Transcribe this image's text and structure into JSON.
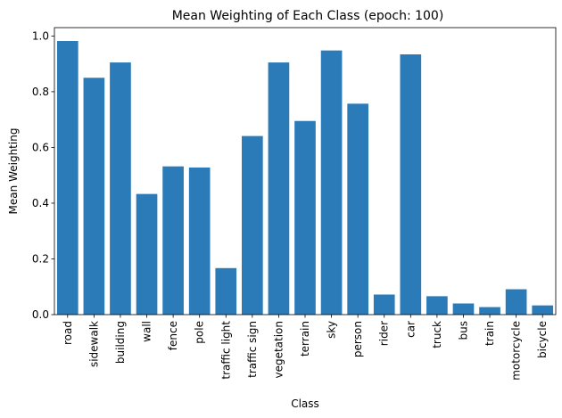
{
  "chart_data": {
    "type": "bar",
    "title": "Mean Weighting of Each Class (epoch: 100)",
    "xlabel": "Class",
    "ylabel": "Mean Weighting",
    "ylim": [
      0,
      1.03
    ],
    "yticks": [
      0.0,
      0.2,
      0.4,
      0.6,
      0.8,
      1.0
    ],
    "ytick_labels": [
      "0.0",
      "0.2",
      "0.4",
      "0.6",
      "0.8",
      "1.0"
    ],
    "categories": [
      "road",
      "sidewalk",
      "building",
      "wall",
      "fence",
      "pole",
      "traffic light",
      "traffic sign",
      "vegetation",
      "terrain",
      "sky",
      "person",
      "rider",
      "car",
      "truck",
      "bus",
      "train",
      "motorcycle",
      "bicycle"
    ],
    "values": [
      0.982,
      0.85,
      0.905,
      0.433,
      0.532,
      0.528,
      0.167,
      0.641,
      0.905,
      0.695,
      0.948,
      0.757,
      0.072,
      0.934,
      0.066,
      0.04,
      0.027,
      0.091,
      0.033
    ],
    "bar_color": "#2b7bb9",
    "grid": false,
    "legend": false
  }
}
